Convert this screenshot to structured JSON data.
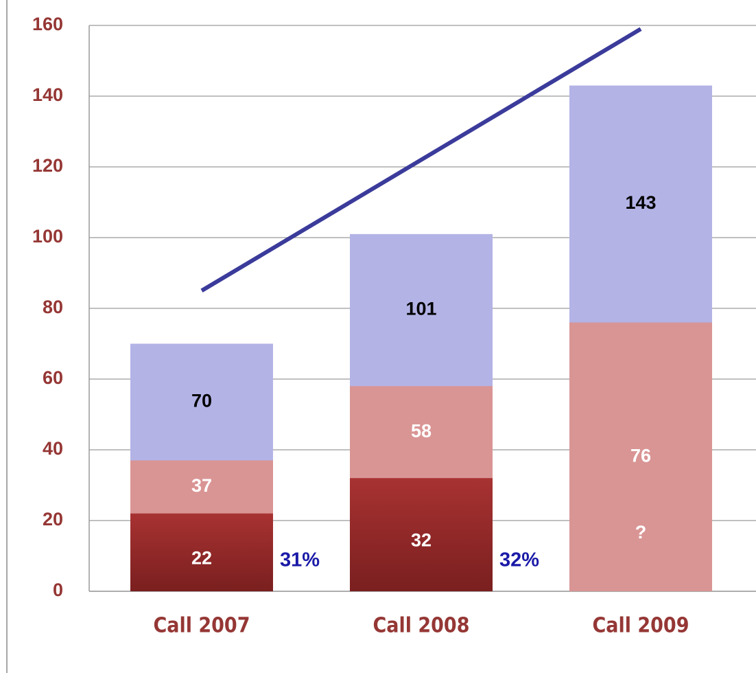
{
  "chart_data": {
    "type": "bar",
    "categories": [
      "Call 2007",
      "Call 2008",
      "Call 2009"
    ],
    "series": [
      {
        "color": "#b3b3e6",
        "label_color": "#000000",
        "values": [
          70,
          101,
          143
        ]
      },
      {
        "color": "#d99594",
        "label_color": "#ffffff",
        "values": [
          37,
          58,
          76
        ]
      },
      {
        "color": "#a33030",
        "label_color": "#ffffff",
        "values": [
          22,
          32,
          null
        ],
        "value_labels": [
          "22",
          "32",
          "?"
        ]
      }
    ],
    "trend": {
      "type": "line",
      "color": "#3b3b9b",
      "values": [
        85,
        122,
        159
      ]
    },
    "annotations": [
      "31%",
      "32%"
    ],
    "annotation_color": "#1a1aa8",
    "ylim": [
      0,
      160
    ],
    "yticks": [
      0,
      20,
      40,
      60,
      80,
      100,
      120,
      140,
      160
    ],
    "grid": true,
    "axis_label_color": "#953735"
  }
}
